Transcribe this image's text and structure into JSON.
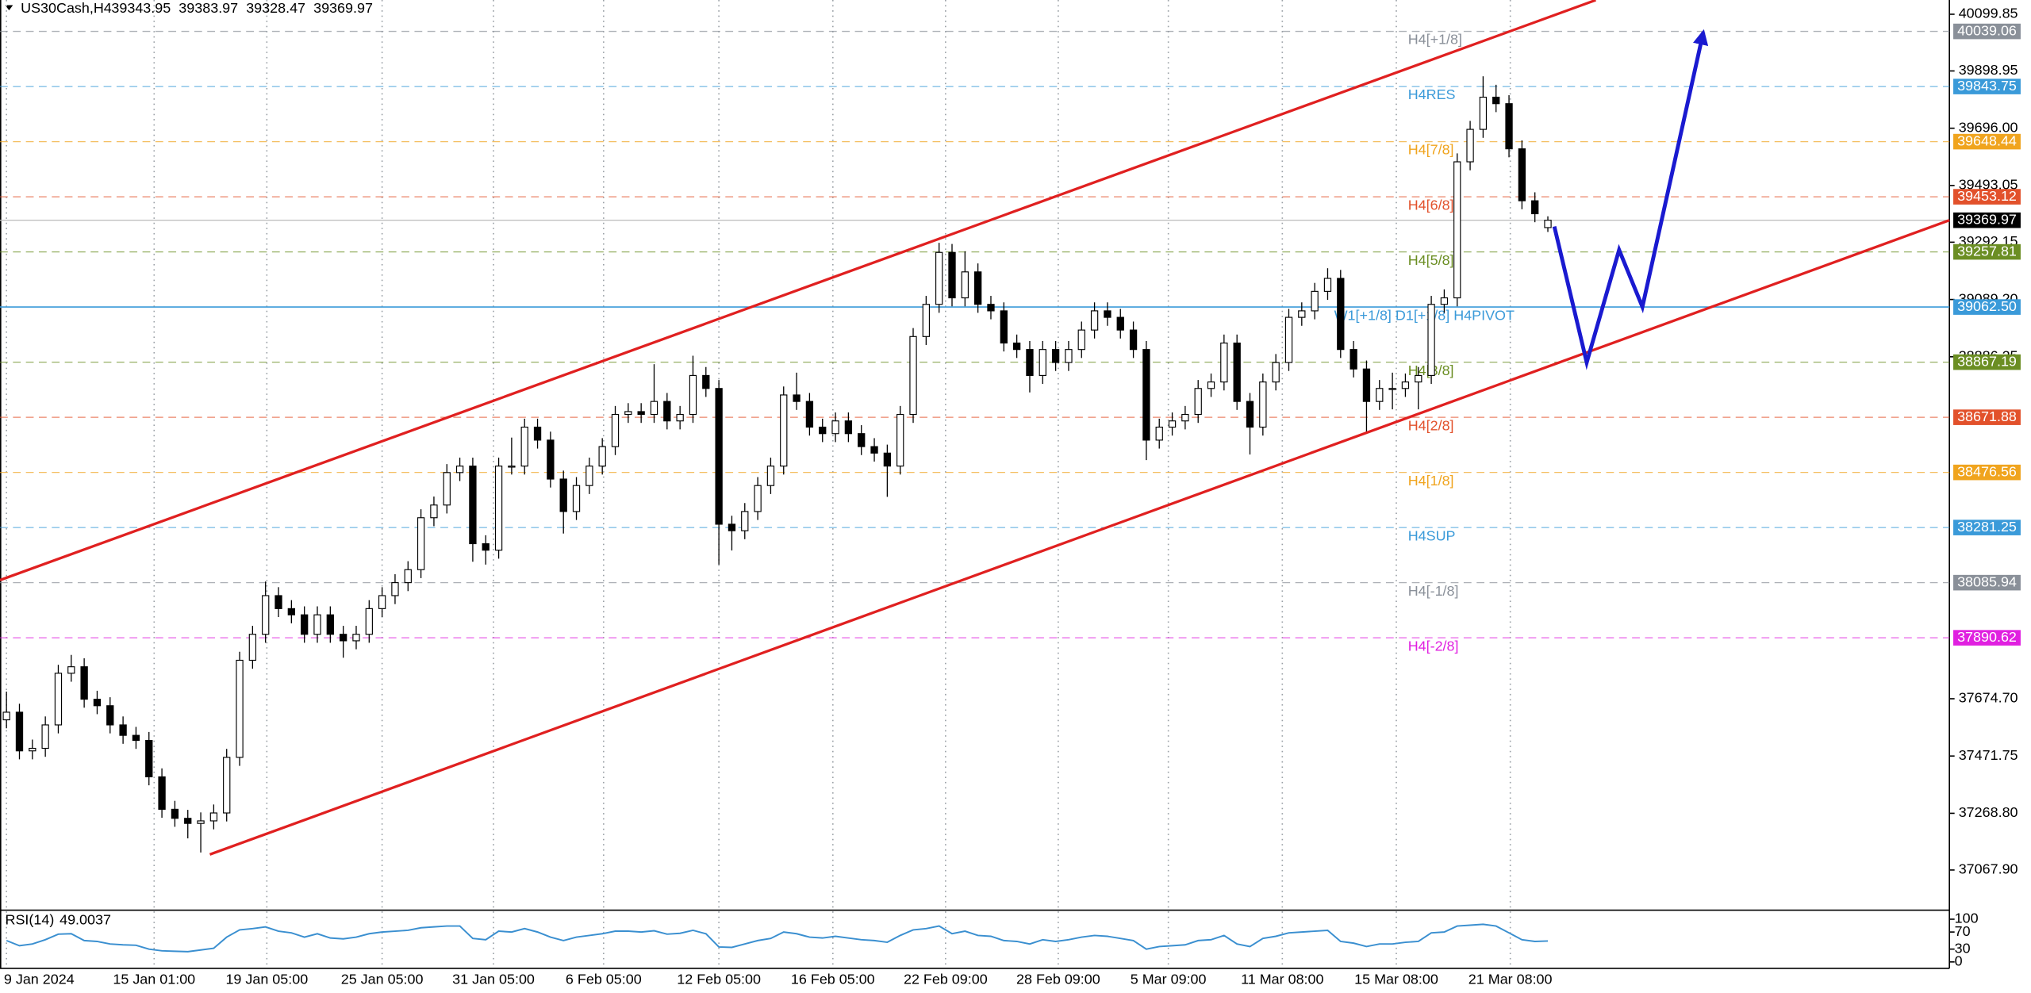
{
  "chart_data": {
    "type": "candlestick",
    "symbol": "US30Cash,H4",
    "ohlc": [
      [
        37600,
        37700,
        37570,
        37627
      ],
      [
        37627,
        37657,
        37460,
        37490
      ],
      [
        37490,
        37530,
        37460,
        37499
      ],
      [
        37499,
        37612,
        37469,
        37582
      ],
      [
        37582,
        37795,
        37552,
        37765
      ],
      [
        37765,
        37830,
        37735,
        37788
      ],
      [
        37788,
        37818,
        37643,
        37673
      ],
      [
        37673,
        37703,
        37620,
        37650
      ],
      [
        37650,
        37680,
        37552,
        37582
      ],
      [
        37582,
        37612,
        37515,
        37545
      ],
      [
        37545,
        37575,
        37497,
        37527
      ],
      [
        37527,
        37557,
        37368,
        37398
      ],
      [
        37398,
        37428,
        37253,
        37283
      ],
      [
        37283,
        37313,
        37221,
        37251
      ],
      [
        37251,
        37281,
        37180,
        37233
      ],
      [
        37233,
        37272,
        37130,
        37242
      ],
      [
        37242,
        37300,
        37212,
        37270
      ],
      [
        37270,
        37497,
        37240,
        37467
      ],
      [
        37467,
        37841,
        37437,
        37811
      ],
      [
        37811,
        37933,
        37781,
        37903
      ],
      [
        37903,
        38090,
        37873,
        38040
      ],
      [
        38040,
        38070,
        37964,
        37994
      ],
      [
        37994,
        38024,
        37942,
        37972
      ],
      [
        37972,
        38002,
        37873,
        37903
      ],
      [
        37903,
        38002,
        37873,
        37972
      ],
      [
        37972,
        38002,
        37873,
        37903
      ],
      [
        37903,
        37933,
        37820,
        37880
      ],
      [
        37880,
        37933,
        37850,
        37903
      ],
      [
        37903,
        38024,
        37873,
        37994
      ],
      [
        37994,
        38070,
        37964,
        38040
      ],
      [
        38040,
        38116,
        38010,
        38086
      ],
      [
        38086,
        38162,
        38056,
        38132
      ],
      [
        38132,
        38346,
        38102,
        38316
      ],
      [
        38316,
        38391,
        38286,
        38361
      ],
      [
        38361,
        38506,
        38331,
        38476
      ],
      [
        38476,
        38529,
        38446,
        38499
      ],
      [
        38499,
        38529,
        38160,
        38224
      ],
      [
        38224,
        38254,
        38150,
        38201
      ],
      [
        38201,
        38529,
        38171,
        38499
      ],
      [
        38499,
        38600,
        38469,
        38499
      ],
      [
        38499,
        38667,
        38469,
        38637
      ],
      [
        38637,
        38667,
        38561,
        38591
      ],
      [
        38591,
        38621,
        38423,
        38453
      ],
      [
        38453,
        38483,
        38260,
        38338
      ],
      [
        38338,
        38460,
        38308,
        38430
      ],
      [
        38430,
        38529,
        38400,
        38499
      ],
      [
        38499,
        38598,
        38469,
        38568
      ],
      [
        38568,
        38712,
        38538,
        38682
      ],
      [
        38682,
        38722,
        38652,
        38692
      ],
      [
        38692,
        38722,
        38652,
        38682
      ],
      [
        38682,
        38860,
        38652,
        38728
      ],
      [
        38728,
        38758,
        38629,
        38659
      ],
      [
        38659,
        38712,
        38629,
        38682
      ],
      [
        38682,
        38890,
        38652,
        38820
      ],
      [
        38820,
        38850,
        38744,
        38774
      ],
      [
        38774,
        38804,
        38150,
        38293
      ],
      [
        38293,
        38323,
        38200,
        38270
      ],
      [
        38270,
        38368,
        38240,
        38338
      ],
      [
        38338,
        38460,
        38308,
        38430
      ],
      [
        38430,
        38529,
        38400,
        38499
      ],
      [
        38499,
        38781,
        38469,
        38751
      ],
      [
        38751,
        38830,
        38698,
        38728
      ],
      [
        38728,
        38758,
        38607,
        38637
      ],
      [
        38637,
        38667,
        38584,
        38614
      ],
      [
        38614,
        38689,
        38584,
        38659
      ],
      [
        38659,
        38689,
        38584,
        38614
      ],
      [
        38614,
        38644,
        38538,
        38568
      ],
      [
        38568,
        38598,
        38515,
        38545
      ],
      [
        38545,
        38575,
        38390,
        38499
      ],
      [
        38499,
        38712,
        38469,
        38682
      ],
      [
        38682,
        38988,
        38652,
        38958
      ],
      [
        38958,
        39102,
        38928,
        39072
      ],
      [
        39072,
        39290,
        39042,
        39256
      ],
      [
        39256,
        39286,
        39065,
        39095
      ],
      [
        39095,
        39260,
        39065,
        39187
      ],
      [
        39187,
        39217,
        39042,
        39072
      ],
      [
        39072,
        39102,
        39019,
        39049
      ],
      [
        39049,
        39079,
        38905,
        38935
      ],
      [
        38935,
        38965,
        38882,
        38912
      ],
      [
        38912,
        38942,
        38760,
        38820
      ],
      [
        38820,
        38942,
        38790,
        38912
      ],
      [
        38912,
        38942,
        38836,
        38866
      ],
      [
        38866,
        38942,
        38836,
        38912
      ],
      [
        38912,
        39011,
        38882,
        38981
      ],
      [
        38981,
        39079,
        38951,
        39049
      ],
      [
        39049,
        39079,
        38996,
        39026
      ],
      [
        39026,
        39056,
        38951,
        38981
      ],
      [
        38981,
        39011,
        38882,
        38912
      ],
      [
        38912,
        38942,
        38520,
        38591
      ],
      [
        38591,
        38667,
        38561,
        38637
      ],
      [
        38637,
        38689,
        38607,
        38659
      ],
      [
        38659,
        38712,
        38629,
        38682
      ],
      [
        38682,
        38804,
        38652,
        38774
      ],
      [
        38774,
        38827,
        38744,
        38797
      ],
      [
        38797,
        38965,
        38767,
        38935
      ],
      [
        38935,
        38965,
        38698,
        38728
      ],
      [
        38728,
        38758,
        38540,
        38637
      ],
      [
        38637,
        38827,
        38607,
        38797
      ],
      [
        38797,
        38896,
        38767,
        38866
      ],
      [
        38866,
        39056,
        38836,
        39026
      ],
      [
        39026,
        39079,
        38996,
        39049
      ],
      [
        39049,
        39148,
        39019,
        39118
      ],
      [
        39118,
        39200,
        39088,
        39164
      ],
      [
        39164,
        39194,
        38882,
        38912
      ],
      [
        38912,
        38942,
        38813,
        38843
      ],
      [
        38843,
        38873,
        38620,
        38728
      ],
      [
        38728,
        38804,
        38698,
        38774
      ],
      [
        38774,
        38830,
        38700,
        38774
      ],
      [
        38774,
        38827,
        38744,
        38797
      ],
      [
        38797,
        38850,
        38700,
        38820
      ],
      [
        38820,
        39102,
        38790,
        39072
      ],
      [
        39072,
        39125,
        39042,
        39095
      ],
      [
        39095,
        39607,
        39065,
        39577
      ],
      [
        39577,
        39722,
        39547,
        39692
      ],
      [
        39692,
        39880,
        39662,
        39806
      ],
      [
        39806,
        39850,
        39753,
        39783
      ],
      [
        39783,
        39813,
        39593,
        39623
      ],
      [
        39623,
        39653,
        39409,
        39439
      ],
      [
        39439,
        39469,
        39363,
        39393
      ],
      [
        39343.95,
        39383.97,
        39328.47,
        39369.97
      ]
    ],
    "xlim": [
      -0.5,
      150
    ],
    "xticks": [
      {
        "value": 0,
        "label": "9 Jan 2024"
      },
      {
        "value": 11.4,
        "label": "15 Jan 01:00"
      },
      {
        "value": 20.1,
        "label": "19 Jan 05:00"
      },
      {
        "value": 29,
        "label": "25 Jan 05:00"
      },
      {
        "value": 37.6,
        "label": "31 Jan 05:00"
      },
      {
        "value": 46.1,
        "label": "6 Feb 05:00"
      },
      {
        "value": 55,
        "label": "12 Feb 05:00"
      },
      {
        "value": 63.8,
        "label": "16 Feb 05:00"
      },
      {
        "value": 72.5,
        "label": "22 Feb 09:00"
      },
      {
        "value": 81.2,
        "label": "28 Feb 09:00"
      },
      {
        "value": 89.7,
        "label": "5 Mar 09:00"
      },
      {
        "value": 98.5,
        "label": "11 Mar 08:00"
      },
      {
        "value": 107.3,
        "label": "15 Mar 08:00"
      },
      {
        "value": 116.1,
        "label": "21 Mar 08:00"
      }
    ],
    "ylim": [
      36925.7,
      40150.3
    ],
    "yticks": [
      40099.85,
      39898.95,
      {
        "value": 39696,
        "label": "39696.00"
      },
      39493.05,
      39292.15,
      {
        "value": 39089.2,
        "label": "39089.20"
      },
      38886.25,
      {
        "value": 37674.7,
        "label": "37674.70"
      },
      37471.75,
      {
        "value": 37268.8,
        "label": "37268.80"
      },
      {
        "value": 37067.9,
        "label": "37067.90"
      }
    ],
    "levels": [
      {
        "name": "H4[+1/8]",
        "value": 40039.06,
        "color": "#8a9099"
      },
      {
        "name": "H4RES",
        "value": 39843.75,
        "color": "#3a9ad9"
      },
      {
        "name": "H4[7/8]",
        "value": 39648.44,
        "color": "#f0a41e"
      },
      {
        "name": "H4[6/8]",
        "value": 39453.12,
        "color": "#e2512b"
      },
      {
        "name": "H4[5/8]",
        "value": 39257.81,
        "color": "#6b8e23"
      },
      {
        "name": "W1[+1/8] D1[+1/8] H4PIVOT",
        "value": 39062.5,
        "value_label": "39062.50",
        "color": "#3a9ad9",
        "solid": true
      },
      {
        "name": "H4[3/8]",
        "value": 38867.19,
        "color": "#6b8e23"
      },
      {
        "name": "H4[2/8]",
        "value": 38671.88,
        "color": "#e2512b"
      },
      {
        "name": "H4[1/8]",
        "value": 38476.56,
        "color": "#f0a41e"
      },
      {
        "name": "H4SUP",
        "value": 38281.25,
        "color": "#3a9ad9"
      },
      {
        "name": "H4[-1/8]",
        "value": 38085.94,
        "color": "#8a9099"
      },
      {
        "name": "H4[-2/8]",
        "value": 37890.62,
        "color": "#e020e0"
      }
    ],
    "current_price_color": "#000000",
    "channels": [
      {
        "color": "#e02020",
        "x": [
          -0.5,
          122.7
        ],
        "y": [
          38095,
          40150
        ]
      },
      {
        "color": "#e02020",
        "x": [
          15.7,
          150
        ],
        "y": [
          37123,
          39370
        ]
      }
    ],
    "forecast": {
      "color": "#1a1ad0",
      "x": [
        119.5,
        122,
        124.5,
        126.3,
        131
      ],
      "y": [
        39348,
        38866,
        39265,
        39063,
        40036
      ]
    },
    "rsi": {
      "label": "RSI(14)",
      "color": "#3a8fd0",
      "ylim": [
        0,
        100
      ],
      "yticks": [
        100,
        70,
        30,
        0
      ],
      "values": [
        50,
        38,
        42,
        52,
        65,
        66,
        50,
        48,
        42,
        40,
        39,
        30,
        26,
        25,
        24,
        28,
        32,
        58,
        75,
        78,
        82,
        72,
        68,
        58,
        66,
        56,
        54,
        58,
        66,
        70,
        72,
        74,
        80,
        82,
        84,
        84,
        55,
        52,
        72,
        70,
        78,
        70,
        58,
        50,
        58,
        62,
        66,
        72,
        72,
        70,
        73,
        65,
        67,
        74,
        66,
        35,
        34,
        42,
        50,
        55,
        70,
        66,
        58,
        56,
        60,
        56,
        52,
        50,
        46,
        62,
        75,
        78,
        84,
        66,
        72,
        62,
        60,
        50,
        48,
        42,
        52,
        48,
        52,
        58,
        62,
        60,
        55,
        50,
        30,
        36,
        38,
        40,
        50,
        52,
        62,
        42,
        36,
        55,
        60,
        68,
        70,
        72,
        74,
        48,
        44,
        36,
        42,
        42,
        46,
        48,
        68,
        70,
        84,
        86,
        88,
        84,
        68,
        52,
        48,
        49.0037
      ]
    }
  }
}
